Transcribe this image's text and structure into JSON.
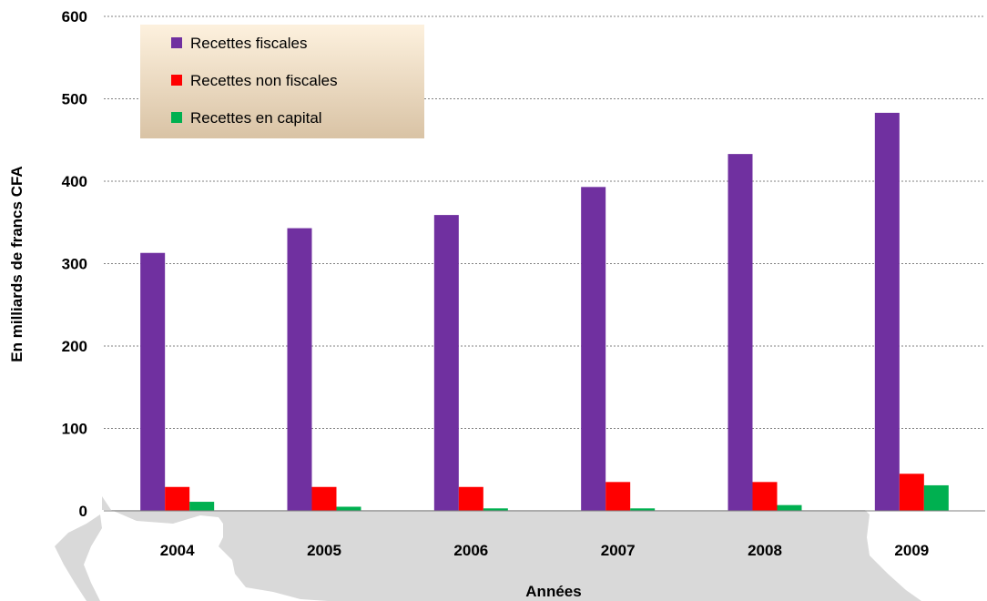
{
  "chart_data": {
    "type": "bar",
    "title": "",
    "xlabel": "Années",
    "ylabel": "En milliards de francs CFA",
    "categories": [
      "2004",
      "2005",
      "2006",
      "2007",
      "2008",
      "2009"
    ],
    "ylim": [
      0,
      600
    ],
    "yticks": [
      0,
      100,
      200,
      300,
      400,
      500,
      600
    ],
    "grid": true,
    "legend_position": "top-left",
    "series": [
      {
        "name": "Recettes fiscales",
        "color": "#7030A0",
        "values": [
          313,
          343,
          359,
          393,
          433,
          483
        ]
      },
      {
        "name": "Recettes non fiscales",
        "color": "#FF0000",
        "values": [
          29,
          29,
          29,
          35,
          35,
          45
        ]
      },
      {
        "name": "Recettes en capital",
        "color": "#00B050",
        "values": [
          11,
          5,
          3,
          3,
          7,
          31
        ]
      }
    ]
  },
  "colors": {
    "background_map": "#D9D9D9",
    "legend_bg_top": "#FDF1DE",
    "legend_bg_bottom": "#D9C3A5",
    "gridline": "#808080"
  }
}
